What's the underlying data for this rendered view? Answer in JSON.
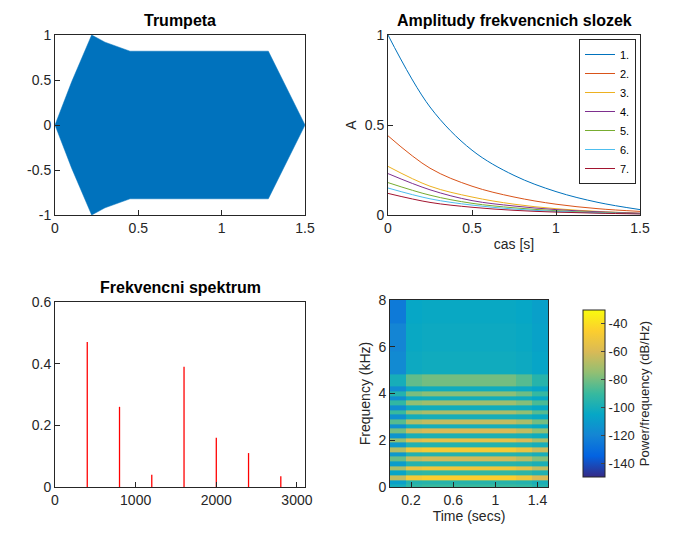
{
  "chart_data": [
    {
      "type": "area",
      "title": "Trumpeta",
      "x": [
        0,
        0.1,
        0.22,
        0.3,
        0.45,
        1.28,
        1.5
      ],
      "values": [
        0,
        0.48,
        1,
        0.92,
        0.82,
        0.82,
        0
      ],
      "color": "#0072bd",
      "xlim": [
        0,
        1.5
      ],
      "xticks": [
        0,
        0.5,
        1,
        1.5
      ],
      "ylim": [
        -1,
        1
      ],
      "yticks": [
        -1,
        -0.5,
        0,
        0.5,
        1
      ],
      "grid": false
    },
    {
      "type": "line",
      "title": "Amplitudy frekvencnich slozek",
      "xlabel": "cas [s]",
      "ylabel": "A",
      "x": [
        0,
        0.25,
        0.5,
        0.75,
        1,
        1.25,
        1.5
      ],
      "series": [
        {
          "name": "1.",
          "color": "#0072bd",
          "values": [
            1,
            0.6,
            0.36,
            0.22,
            0.13,
            0.07,
            0.03
          ]
        },
        {
          "name": "2.",
          "color": "#d95319",
          "values": [
            0.44,
            0.26,
            0.16,
            0.1,
            0.06,
            0.035,
            0.02
          ]
        },
        {
          "name": "3.",
          "color": "#edb120",
          "values": [
            0.27,
            0.16,
            0.1,
            0.06,
            0.035,
            0.02,
            0.01
          ]
        },
        {
          "name": "4.",
          "color": "#7e2f8e",
          "values": [
            0.23,
            0.14,
            0.08,
            0.05,
            0.03,
            0.018,
            0.01
          ]
        },
        {
          "name": "5.",
          "color": "#77ac30",
          "values": [
            0.18,
            0.11,
            0.065,
            0.04,
            0.024,
            0.014,
            0.008
          ]
        },
        {
          "name": "6.",
          "color": "#4dbeee",
          "values": [
            0.15,
            0.09,
            0.055,
            0.033,
            0.02,
            0.012,
            0.007
          ]
        },
        {
          "name": "7.",
          "color": "#a2142f",
          "values": [
            0.12,
            0.07,
            0.043,
            0.026,
            0.016,
            0.01,
            0.006
          ]
        }
      ],
      "xlim": [
        0,
        1.5
      ],
      "xticks": [
        0,
        0.5,
        1,
        1.5
      ],
      "ylim": [
        0,
        1
      ],
      "yticks": [
        0,
        0.5,
        1
      ],
      "legend": "upper right",
      "grid": false
    },
    {
      "type": "bar",
      "title": "Frekvencni spektrum",
      "x": [
        400,
        800,
        1200,
        1600,
        2000,
        2400,
        2800
      ],
      "values": [
        0.47,
        0.26,
        0.04,
        0.39,
        0.16,
        0.11,
        0.035
      ],
      "color": "#ff0000",
      "xlim": [
        0,
        3100
      ],
      "xticks": [
        0,
        1000,
        2000,
        3000
      ],
      "ylim": [
        0,
        0.6
      ],
      "yticks": [
        0,
        0.2,
        0.4,
        0.6
      ],
      "grid": false
    },
    {
      "type": "heatmap",
      "xlabel": "Time (secs)",
      "ylabel": "Frequency (kHz)",
      "x": [
        0.075,
        0.225,
        0.375,
        0.525,
        0.675,
        0.825,
        0.975,
        1.125,
        1.275,
        1.425
      ],
      "y": [
        0,
        0.2,
        0.4,
        0.6,
        0.8,
        1,
        1.2,
        1.4,
        1.6,
        1.8,
        2,
        2.2,
        2.4,
        2.6,
        2.8,
        3,
        3.2,
        3.4,
        3.6,
        3.8,
        4,
        4.2,
        4.4,
        5.2,
        6.4,
        7.6
      ],
      "z": [
        [
          -100,
          -92,
          -90,
          -90,
          -90,
          -90,
          -90,
          -90,
          -91,
          -95
        ],
        [
          -108,
          -96,
          -95,
          -95,
          -95,
          -95,
          -95,
          -95,
          -96,
          -99
        ],
        [
          -65,
          -48,
          -45,
          -45,
          -45,
          -45,
          -45,
          -45,
          -50,
          -60
        ],
        [
          -106,
          -93,
          -92,
          -92,
          -92,
          -92,
          -92,
          -92,
          -93,
          -97
        ],
        [
          -70,
          -53,
          -50,
          -50,
          -50,
          -50,
          -50,
          -50,
          -55,
          -65
        ],
        [
          -110,
          -96,
          -95,
          -95,
          -95,
          -95,
          -95,
          -95,
          -96,
          -99
        ],
        [
          -82,
          -65,
          -62,
          -62,
          -62,
          -62,
          -62,
          -62,
          -67,
          -77
        ],
        [
          -111,
          -97,
          -96,
          -96,
          -96,
          -96,
          -96,
          -96,
          -97,
          -100
        ],
        [
          -68,
          -51,
          -48,
          -48,
          -48,
          -48,
          -48,
          -48,
          -53,
          -63
        ],
        [
          -111,
          -97,
          -96,
          -96,
          -96,
          -96,
          -96,
          -96,
          -97,
          -100
        ],
        [
          -75,
          -58,
          -55,
          -55,
          -55,
          -55,
          -55,
          -55,
          -60,
          -70
        ],
        [
          -113,
          -99,
          -98,
          -98,
          -98,
          -98,
          -98,
          -98,
          -99,
          -102
        ],
        [
          -80,
          -63,
          -60,
          -60,
          -60,
          -60,
          -60,
          -60,
          -65,
          -75
        ],
        [
          -115,
          -101,
          -100,
          -100,
          -100,
          -100,
          -100,
          -100,
          -101,
          -104
        ],
        [
          -85,
          -68,
          -65,
          -65,
          -65,
          -65,
          -65,
          -65,
          -70,
          -80
        ],
        [
          -115,
          -101,
          -100,
          -100,
          -100,
          -100,
          -100,
          -100,
          -101,
          -104
        ],
        [
          -90,
          -73,
          -70,
          -70,
          -70,
          -70,
          -70,
          -70,
          -75,
          -85
        ],
        [
          -116,
          -102,
          -101,
          -101,
          -101,
          -101,
          -101,
          -101,
          -102,
          -105
        ],
        [
          -92,
          -75,
          -72,
          -72,
          -72,
          -72,
          -72,
          -72,
          -77,
          -87
        ],
        [
          -116,
          -102,
          -101,
          -101,
          -101,
          -101,
          -101,
          -101,
          -102,
          -105
        ],
        [
          -96,
          -79,
          -76,
          -76,
          -76,
          -76,
          -76,
          -76,
          -81,
          -91
        ],
        [
          -117,
          -103,
          -102,
          -102,
          -102,
          -102,
          -102,
          -102,
          -103,
          -106
        ],
        [
          -100,
          -83,
          -80,
          -80,
          -80,
          -80,
          -80,
          -80,
          -85,
          -95
        ],
        [
          -118,
          -103,
          -102,
          -102,
          -102,
          -102,
          -102,
          -102,
          -103,
          -106
        ],
        [
          -120,
          -104,
          -103,
          -103,
          -103,
          -103,
          -103,
          -103,
          -104,
          -107
        ],
        [
          -125,
          -105,
          -104,
          -104,
          -104,
          -104,
          -104,
          -104,
          -105,
          -108
        ]
      ],
      "xlim": [
        0,
        1.5
      ],
      "xticks": [
        0.2,
        0.6,
        1,
        1.4
      ],
      "ylim": [
        0,
        8
      ],
      "yticks": [
        0,
        2,
        4,
        6,
        8
      ],
      "colorbar": {
        "title": "Power/frequency (dB/Hz)",
        "range": [
          -150,
          -30
        ],
        "ticks": [
          -140,
          -120,
          -100,
          -80,
          -60,
          -40
        ]
      },
      "grid": false
    }
  ]
}
